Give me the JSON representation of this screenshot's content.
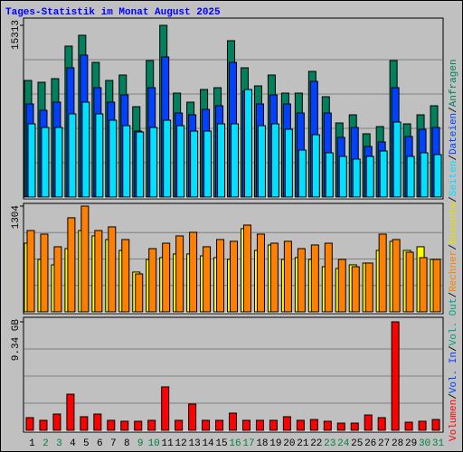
{
  "chart_data": [
    {
      "type": "bar",
      "title": "Tages-Statistik im Monat August 2025",
      "legend_separator": "/",
      "ylim": [
        0,
        15313
      ],
      "yticks": [
        15313
      ],
      "series": [
        {
          "name": "Anfragen",
          "color": "#00805c",
          "values": [
            10397,
            10236,
            10558,
            13460,
            14427,
            12009,
            10397,
            10881,
            8060,
            12170,
            15313,
            9269,
            8463,
            9591,
            9752,
            13943,
            11525,
            9913,
            10881,
            9269,
            9269,
            11203,
            8946,
            6609,
            7334,
            5642,
            6286,
            12170,
            6528,
            7334,
            8140
          ]
        },
        {
          "name": "Dateien",
          "color": "#0040ff",
          "values": [
            8302,
            7738,
            8463,
            11526,
            12654,
            9753,
            8463,
            9108,
            5884,
            9753,
            12493,
            7496,
            7335,
            7818,
            8141,
            12009,
            9430,
            8302,
            9108,
            8302,
            7496,
            10317,
            7496,
            5320,
            6206,
            4514,
            4917,
            9753,
            5400,
            6045,
            6206
          ]
        },
        {
          "name": "Seiten",
          "color": "#00e0ff",
          "values": [
            6529,
            6206,
            6206,
            7415,
            8463,
            7415,
            6851,
            6367,
            5803,
            6206,
            6851,
            6367,
            5884,
            5884,
            6529,
            6529,
            9591,
            6367,
            6529,
            6045,
            4191,
            5561,
            3949,
            3627,
            3385,
            3627,
            4111,
            6690,
            3627,
            3949,
            3788
          ]
        }
      ]
    },
    {
      "type": "bar",
      "ylim": [
        0,
        1304
      ],
      "yticks": [
        1304
      ],
      "series": [
        {
          "name": "Besuche",
          "color": "#ffff00",
          "values": [
            847,
            647,
            580,
            780,
            1003,
            937,
            892,
            758,
            491,
            647,
            669,
            714,
            714,
            691,
            669,
            647,
            1026,
            758,
            825,
            647,
            669,
            647,
            557,
            535,
            580,
            602,
            758,
            870,
            758,
            803,
            647
          ]
        },
        {
          "name": "Rechner",
          "color": "#ff8000",
          "values": [
            1003,
            959,
            803,
            1160,
            1304,
            1003,
            1048,
            892,
            468,
            780,
            847,
            937,
            981,
            803,
            892,
            870,
            1070,
            959,
            847,
            870,
            780,
            825,
            847,
            647,
            557,
            602,
            959,
            892,
            736,
            669,
            647
          ]
        }
      ]
    },
    {
      "type": "bar",
      "ylim": [
        0,
        9.34
      ],
      "yticks": [
        {
          "value": 9.34,
          "label": "9.34 GB"
        }
      ],
      "categories": [
        "1",
        "2",
        "3",
        "4",
        "5",
        "6",
        "7",
        "8",
        "9",
        "10",
        "11",
        "12",
        "13",
        "14",
        "15",
        "16",
        "17",
        "18",
        "19",
        "20",
        "21",
        "22",
        "23",
        "24",
        "25",
        "26",
        "27",
        "28",
        "29",
        "30",
        "31"
      ],
      "category_colors": [
        "#000000",
        "#008040",
        "#008040",
        "#000000",
        "#000000",
        "#000000",
        "#000000",
        "#000000",
        "#008040",
        "#008040",
        "#000000",
        "#000000",
        "#000000",
        "#000000",
        "#000000",
        "#008040",
        "#008040",
        "#000000",
        "#000000",
        "#000000",
        "#000000",
        "#000000",
        "#008040",
        "#008040",
        "#000000",
        "#000000",
        "#000000",
        "#000000",
        "#000000",
        "#008040",
        "#008040"
      ],
      "series": [
        {
          "name": "Vol. Out",
          "color": "#00a080"
        },
        {
          "name": "Vol. In",
          "color": "#0040ff"
        },
        {
          "name": "Volumen",
          "color": "#ff0000",
          "values": [
            1.09,
            0.86,
            1.4,
            3.11,
            1.17,
            1.4,
            0.86,
            0.78,
            0.78,
            0.86,
            3.74,
            0.86,
            2.26,
            0.86,
            0.86,
            1.48,
            0.86,
            0.86,
            0.86,
            1.17,
            0.86,
            0.93,
            0.78,
            0.62,
            0.62,
            1.32,
            1.09,
            9.34,
            0.7,
            0.78,
            0.93
          ]
        }
      ]
    }
  ]
}
